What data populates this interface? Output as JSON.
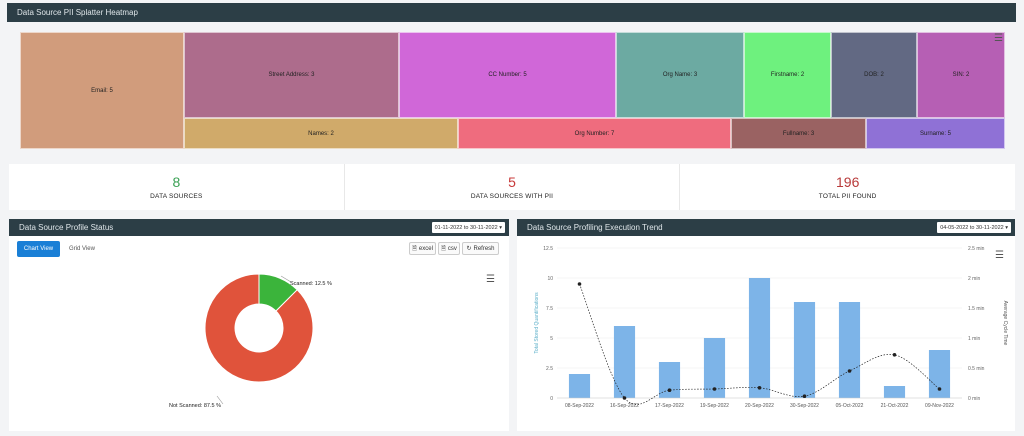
{
  "heatmap": {
    "title": "Data Source PII Splatter Heatmap",
    "cells": [
      {
        "label": "Email: 5",
        "color": "#d19c7c"
      },
      {
        "label": "Street Address: 3",
        "color": "#ad6c8c"
      },
      {
        "label": "CC Number: 5",
        "color": "#d067d8"
      },
      {
        "label": "Org Name: 3",
        "color": "#6caaa2"
      },
      {
        "label": "Firstname: 2",
        "color": "#6ef17e"
      },
      {
        "label": "DOB: 2",
        "color": "#626983"
      },
      {
        "label": "SIN: 2",
        "color": "#b65fb4"
      },
      {
        "label": "Names: 2",
        "color": "#d0aa6a"
      },
      {
        "label": "Org Number: 7",
        "color": "#ef6c7e"
      },
      {
        "label": "Fullname: 3",
        "color": "#9a6262"
      },
      {
        "label": "Surname: 5",
        "color": "#8f71d6"
      }
    ]
  },
  "stats": [
    {
      "value": "8",
      "label": "DATA SOURCES",
      "color": "#3aa154"
    },
    {
      "value": "5",
      "label": "DATA SOURCES WITH PII",
      "color": "#c83a3a"
    },
    {
      "value": "196",
      "label": "TOTAL PII FOUND",
      "color": "#b83a3a"
    }
  ],
  "profile": {
    "title": "Data Source Profile Status",
    "date_range": "01-11-2022 to 30-11-2022",
    "tabs": {
      "chart": "Chart View",
      "grid": "Grid View"
    },
    "buttons": {
      "excel": "excel",
      "csv": "csv",
      "refresh": "Refresh"
    },
    "donut": {
      "slices": [
        {
          "label": "Scanned: 12.5 %",
          "value": 12.5,
          "color": "#3bb43b"
        },
        {
          "label": "Not Scanned: 87.5 %",
          "value": 87.5,
          "color": "#e0533b"
        }
      ]
    }
  },
  "trend": {
    "title": "Data Source Profiling Execution Trend",
    "date_range": "04-05-2022 to 30-11-2022",
    "chart_data": {
      "type": "bar",
      "categories": [
        "08-Sep-2022",
        "16-Sep-2022",
        "17-Sep-2022",
        "19-Sep-2022",
        "20-Sep-2022",
        "30-Sep-2022",
        "05-Oct-2022",
        "21-Oct-2022",
        "09-Nov-2022"
      ],
      "series": [
        {
          "values": [
            2,
            6,
            3,
            5,
            10,
            8,
            8,
            1,
            4
          ],
          "color": "#7db4e8"
        },
        {
          "values": [
            1.9,
            0.0,
            0.13,
            0.15,
            0.17,
            0.03,
            0.45,
            0.72,
            0.15
          ],
          "color": "#222222"
        }
      ],
      "ylabel": "Total Stored Quantifications",
      "y2label": "Average Cycle Time",
      "yticks": [
        "0",
        "2.5",
        "5",
        "7.5",
        "10",
        "12.5"
      ],
      "y2ticks": [
        "0 min",
        "0.5 min",
        "1 min",
        "1.5 min",
        "2 min",
        "2.5 min"
      ],
      "ylim": [
        0,
        12.5
      ],
      "y2lim": [
        0,
        2.5
      ]
    }
  }
}
